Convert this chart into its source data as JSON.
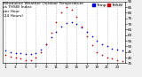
{
  "title": "Milwaukee Weather Outdoor Temperature\nvs THSW Index\nper Hour\n(24 Hours)",
  "background_color": "#f0f0f0",
  "plot_bg_color": "#ffffff",
  "grid_color": "#aaaaaa",
  "temp_color": "#0000cc",
  "thsw_color": "#cc0000",
  "legend_temp_label": "Temp",
  "legend_thsw_label": "THSW",
  "hours": [
    1,
    2,
    3,
    4,
    5,
    6,
    7,
    8,
    9,
    10,
    11,
    12,
    13,
    14,
    15,
    16,
    17,
    18,
    19,
    20,
    21,
    22,
    23,
    24
  ],
  "temp_values": [
    46,
    45,
    44,
    44,
    43,
    43,
    44,
    47,
    52,
    58,
    63,
    68,
    71,
    72,
    70,
    67,
    63,
    59,
    55,
    52,
    50,
    48,
    47,
    46
  ],
  "thsw_values": [
    42,
    41,
    40,
    39,
    38,
    38,
    40,
    45,
    52,
    62,
    72,
    80,
    85,
    83,
    76,
    68,
    59,
    51,
    45,
    42,
    40,
    39,
    38,
    37
  ],
  "ylim": [
    35,
    90
  ],
  "ytick_step": 5,
  "ytick_right": true,
  "marker_size": 1.5,
  "title_fontsize": 3.2,
  "tick_fontsize": 3.0,
  "legend_fontsize": 3.2,
  "grid_dashes": [
    2,
    2
  ],
  "grid_linewidth": 0.4,
  "grid_hours": [
    1,
    3,
    5,
    7,
    9,
    11,
    13,
    15,
    17,
    19,
    21,
    23
  ],
  "xtick_hours": [
    1,
    3,
    5,
    7,
    9,
    11,
    13,
    15,
    17,
    19,
    21,
    23
  ]
}
